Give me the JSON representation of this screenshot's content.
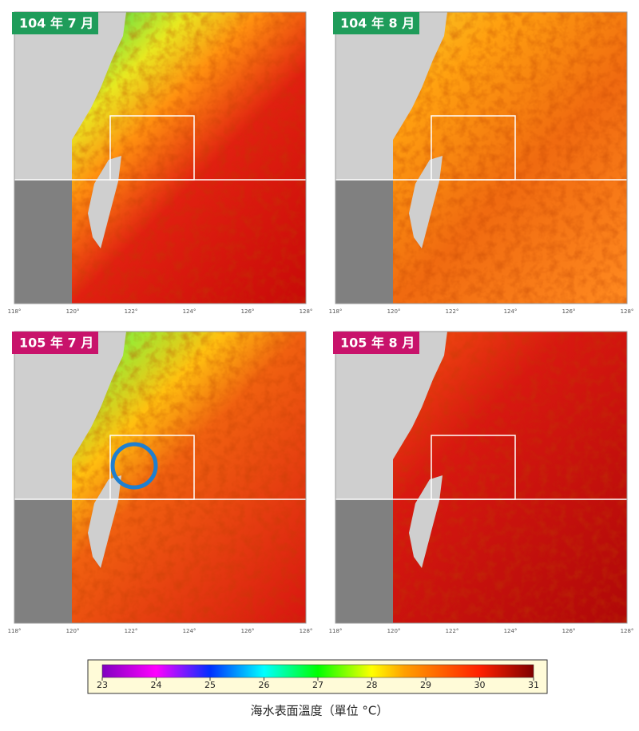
{
  "panels": [
    {
      "label": "104 年 7 月"
    },
    {
      "label": "104 年 8 月"
    },
    {
      "label": "105 年 7 月"
    },
    {
      "label": "105 年 8 月"
    }
  ],
  "lon_ticks": [
    "118°",
    "120°",
    "122°",
    "124°",
    "126°",
    "128°"
  ],
  "colorbar": {
    "range": [
      23,
      31
    ],
    "ticks": [
      23,
      24,
      25,
      26,
      27,
      28,
      29,
      30,
      31
    ]
  },
  "caption": "海水表面溫度（單位 °C）"
}
